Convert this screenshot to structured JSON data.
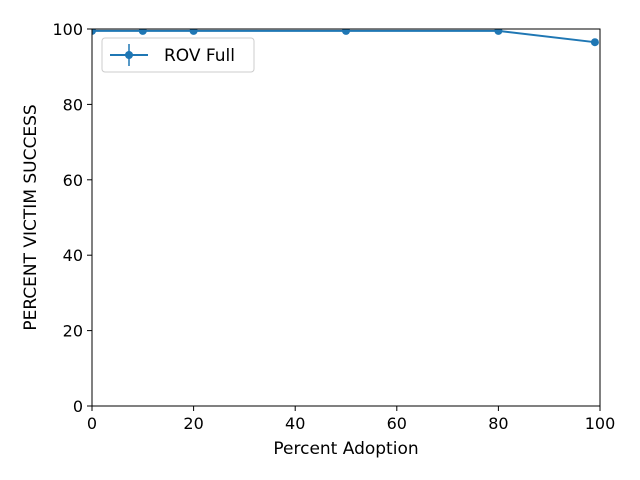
{
  "chart_data": {
    "type": "line",
    "xlabel": "Percent Adoption",
    "ylabel": "PERCENT VICTIM SUCCESS",
    "xlim": [
      0,
      100
    ],
    "ylim": [
      0,
      100
    ],
    "xticks": [
      0,
      20,
      40,
      60,
      80,
      100
    ],
    "yticks": [
      0,
      20,
      40,
      60,
      80,
      100
    ],
    "grid": false,
    "legend_position": "top-left",
    "series": [
      {
        "name": "ROV Full",
        "color": "#1f77b4",
        "marker": "circle",
        "error_bars": true,
        "x": [
          0,
          10,
          20,
          50,
          80,
          99
        ],
        "y": [
          99.5,
          99.5,
          99.5,
          99.5,
          99.5,
          96.5
        ]
      }
    ]
  }
}
